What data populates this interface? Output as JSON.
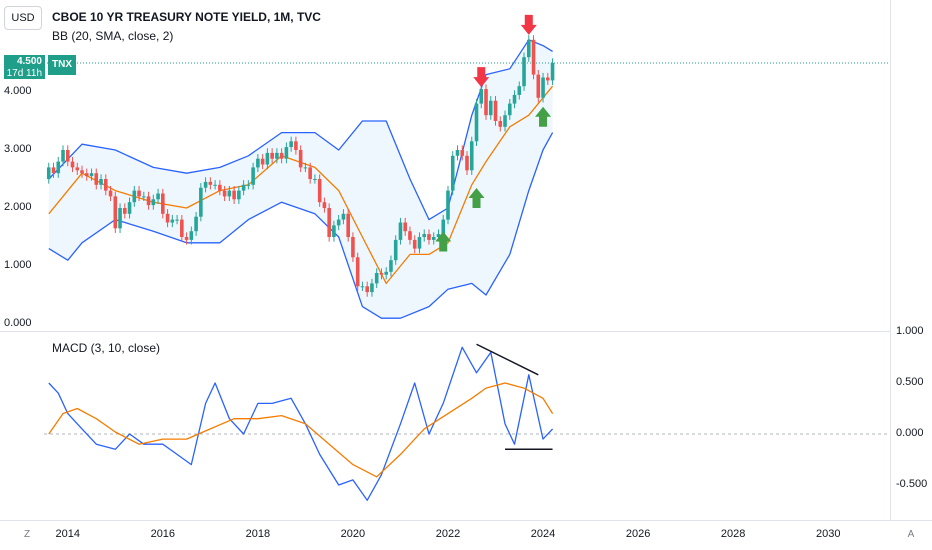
{
  "header": {
    "currency": "USD",
    "title": "CBOE 10 YR TREASURY NOTE YIELD, 1M, TVC",
    "indicator_bb": "BB (20, SMA, close, 2)",
    "indicator_macd": "MACD (3, 10, close)",
    "price_label": "4.500",
    "countdown_label": "17d 11h",
    "symbol_label": "TNX"
  },
  "corner": {
    "left": "Z",
    "right": "A"
  },
  "colors": {
    "up": "#26a69a",
    "down": "#ef5350",
    "bb_band": "#2962ff",
    "bb_basis": "#f57c00",
    "bb_fill": "#e3f2fd",
    "macd": "#2962ff",
    "signal": "#f57c00",
    "arrow_up": "#43a047",
    "arrow_down": "#f23645",
    "price_line": "#1f9e8a"
  },
  "chart_data": [
    {
      "type": "candlestick",
      "title": "CBOE 10 YR TREASURY NOTE YIELD, 1M, TVC",
      "ylim": [
        0,
        5
      ],
      "yticks": [
        "0.000",
        "1.000",
        "2.000",
        "3.000",
        "4.000"
      ],
      "xticks": [
        "2014",
        "2016",
        "2018",
        "2020",
        "2022",
        "2024",
        "2026",
        "2028",
        "2030"
      ],
      "xlim": [
        2013.5,
        2031.3
      ],
      "last_price": 4.5,
      "bb": {
        "upper": [
          [
            2013.6,
            2.5
          ],
          [
            2014.3,
            3.1
          ],
          [
            2015.0,
            3.0
          ],
          [
            2015.8,
            2.7
          ],
          [
            2016.5,
            2.6
          ],
          [
            2017.2,
            2.7
          ],
          [
            2017.8,
            2.9
          ],
          [
            2018.5,
            3.3
          ],
          [
            2019.2,
            3.3
          ],
          [
            2019.7,
            3.0
          ],
          [
            2020.2,
            3.5
          ],
          [
            2020.7,
            3.5
          ],
          [
            2021.2,
            2.5
          ],
          [
            2021.6,
            1.8
          ],
          [
            2022.0,
            2.0
          ],
          [
            2022.5,
            3.6
          ],
          [
            2022.8,
            4.3
          ],
          [
            2023.3,
            4.4
          ],
          [
            2023.7,
            4.9
          ],
          [
            2024.0,
            4.8
          ],
          [
            2024.2,
            4.7
          ]
        ],
        "basis": [
          [
            2013.6,
            1.9
          ],
          [
            2014.3,
            2.6
          ],
          [
            2015.0,
            2.3
          ],
          [
            2015.8,
            2.1
          ],
          [
            2016.5,
            2.0
          ],
          [
            2017.2,
            2.3
          ],
          [
            2017.8,
            2.4
          ],
          [
            2018.5,
            2.9
          ],
          [
            2019.2,
            2.7
          ],
          [
            2019.7,
            2.3
          ],
          [
            2020.2,
            1.5
          ],
          [
            2020.7,
            0.7
          ],
          [
            2021.2,
            1.2
          ],
          [
            2021.6,
            1.2
          ],
          [
            2022.0,
            1.4
          ],
          [
            2022.5,
            2.4
          ],
          [
            2022.8,
            2.8
          ],
          [
            2023.3,
            3.4
          ],
          [
            2023.7,
            3.6
          ],
          [
            2024.0,
            3.9
          ],
          [
            2024.2,
            4.1
          ]
        ],
        "lower": [
          [
            2013.6,
            1.3
          ],
          [
            2014.0,
            1.1
          ],
          [
            2014.3,
            1.4
          ],
          [
            2015.0,
            1.8
          ],
          [
            2015.8,
            1.6
          ],
          [
            2016.5,
            1.4
          ],
          [
            2017.2,
            1.4
          ],
          [
            2017.8,
            1.8
          ],
          [
            2018.5,
            2.1
          ],
          [
            2019.2,
            1.9
          ],
          [
            2019.7,
            1.5
          ],
          [
            2020.2,
            0.3
          ],
          [
            2020.6,
            0.1
          ],
          [
            2021.0,
            0.1
          ],
          [
            2021.6,
            0.3
          ],
          [
            2022.0,
            0.6
          ],
          [
            2022.5,
            0.7
          ],
          [
            2022.8,
            0.5
          ],
          [
            2023.3,
            1.2
          ],
          [
            2023.7,
            2.3
          ],
          [
            2024.0,
            3.0
          ],
          [
            2024.2,
            3.3
          ]
        ]
      },
      "candles": [
        [
          2013.6,
          2.5,
          2.7
        ],
        [
          2013.7,
          2.7,
          2.6
        ],
        [
          2013.8,
          2.6,
          2.8
        ],
        [
          2013.9,
          2.8,
          3.0
        ],
        [
          2014.0,
          3.0,
          2.8
        ],
        [
          2014.1,
          2.8,
          2.7
        ],
        [
          2014.2,
          2.7,
          2.65
        ],
        [
          2014.3,
          2.65,
          2.6
        ],
        [
          2014.4,
          2.6,
          2.55
        ],
        [
          2014.5,
          2.55,
          2.6
        ],
        [
          2014.6,
          2.6,
          2.4
        ],
        [
          2014.7,
          2.4,
          2.5
        ],
        [
          2014.8,
          2.5,
          2.3
        ],
        [
          2014.9,
          2.3,
          2.2
        ],
        [
          2015.0,
          2.2,
          1.65
        ],
        [
          2015.1,
          1.65,
          2.0
        ],
        [
          2015.2,
          2.0,
          1.9
        ],
        [
          2015.3,
          1.9,
          2.1
        ],
        [
          2015.4,
          2.1,
          2.3
        ],
        [
          2015.5,
          2.3,
          2.2
        ],
        [
          2015.6,
          2.2,
          2.2
        ],
        [
          2015.7,
          2.2,
          2.05
        ],
        [
          2015.8,
          2.05,
          2.15
        ],
        [
          2015.9,
          2.15,
          2.25
        ],
        [
          2016.0,
          2.25,
          1.9
        ],
        [
          2016.1,
          1.9,
          1.75
        ],
        [
          2016.2,
          1.75,
          1.8
        ],
        [
          2016.3,
          1.8,
          1.8
        ],
        [
          2016.4,
          1.8,
          1.5
        ],
        [
          2016.5,
          1.5,
          1.45
        ],
        [
          2016.6,
          1.45,
          1.6
        ],
        [
          2016.7,
          1.6,
          1.85
        ],
        [
          2016.8,
          1.85,
          2.35
        ],
        [
          2016.9,
          2.35,
          2.45
        ],
        [
          2017.0,
          2.45,
          2.4
        ],
        [
          2017.1,
          2.4,
          2.4
        ],
        [
          2017.2,
          2.4,
          2.3
        ],
        [
          2017.3,
          2.3,
          2.2
        ],
        [
          2017.4,
          2.2,
          2.3
        ],
        [
          2017.5,
          2.3,
          2.15
        ],
        [
          2017.6,
          2.15,
          2.3
        ],
        [
          2017.7,
          2.3,
          2.4
        ],
        [
          2017.8,
          2.4,
          2.4
        ],
        [
          2017.9,
          2.4,
          2.7
        ],
        [
          2018.0,
          2.7,
          2.85
        ],
        [
          2018.1,
          2.85,
          2.75
        ],
        [
          2018.2,
          2.75,
          2.95
        ],
        [
          2018.3,
          2.95,
          2.85
        ],
        [
          2018.4,
          2.85,
          2.95
        ],
        [
          2018.5,
          2.95,
          2.85
        ],
        [
          2018.6,
          2.85,
          3.05
        ],
        [
          2018.7,
          3.05,
          3.15
        ],
        [
          2018.8,
          3.15,
          3.0
        ],
        [
          2018.9,
          3.0,
          2.7
        ],
        [
          2019.0,
          2.7,
          2.7
        ],
        [
          2019.1,
          2.7,
          2.5
        ],
        [
          2019.2,
          2.5,
          2.5
        ],
        [
          2019.3,
          2.5,
          2.1
        ],
        [
          2019.4,
          2.1,
          2.0
        ],
        [
          2019.5,
          2.0,
          1.5
        ],
        [
          2019.6,
          1.5,
          1.7
        ],
        [
          2019.7,
          1.7,
          1.8
        ],
        [
          2019.8,
          1.8,
          1.9
        ],
        [
          2019.9,
          1.9,
          1.5
        ],
        [
          2020.0,
          1.5,
          1.15
        ],
        [
          2020.1,
          1.15,
          0.65
        ],
        [
          2020.2,
          0.65,
          0.65
        ],
        [
          2020.3,
          0.65,
          0.55
        ],
        [
          2020.4,
          0.55,
          0.7
        ],
        [
          2020.5,
          0.7,
          0.88
        ],
        [
          2020.6,
          0.88,
          0.85
        ],
        [
          2020.7,
          0.85,
          0.9
        ],
        [
          2020.8,
          0.9,
          1.1
        ],
        [
          2020.9,
          1.1,
          1.45
        ],
        [
          2021.0,
          1.45,
          1.75
        ],
        [
          2021.1,
          1.75,
          1.6
        ],
        [
          2021.2,
          1.6,
          1.45
        ],
        [
          2021.3,
          1.45,
          1.3
        ],
        [
          2021.4,
          1.3,
          1.5
        ],
        [
          2021.5,
          1.5,
          1.55
        ],
        [
          2021.6,
          1.55,
          1.45
        ],
        [
          2021.7,
          1.45,
          1.5
        ],
        [
          2021.8,
          1.5,
          1.55
        ],
        [
          2021.9,
          1.55,
          1.8
        ],
        [
          2022.0,
          1.8,
          2.3
        ],
        [
          2022.1,
          2.3,
          2.9
        ],
        [
          2022.2,
          2.9,
          3.0
        ],
        [
          2022.3,
          3.0,
          2.9
        ],
        [
          2022.4,
          2.9,
          2.65
        ],
        [
          2022.5,
          2.65,
          3.15
        ],
        [
          2022.6,
          3.15,
          3.8
        ],
        [
          2022.7,
          3.8,
          4.05
        ],
        [
          2022.8,
          4.05,
          3.6
        ],
        [
          2022.9,
          3.6,
          3.85
        ],
        [
          2023.0,
          3.85,
          3.5
        ],
        [
          2023.1,
          3.5,
          3.4
        ],
        [
          2023.2,
          3.4,
          3.6
        ],
        [
          2023.3,
          3.6,
          3.8
        ],
        [
          2023.4,
          3.8,
          3.95
        ],
        [
          2023.5,
          3.95,
          4.1
        ],
        [
          2023.6,
          4.1,
          4.6
        ],
        [
          2023.7,
          4.6,
          4.9
        ],
        [
          2023.8,
          4.9,
          4.3
        ],
        [
          2023.9,
          4.3,
          3.9
        ],
        [
          2024.0,
          3.9,
          4.25
        ],
        [
          2024.1,
          4.25,
          4.2
        ],
        [
          2024.2,
          4.2,
          4.5
        ]
      ],
      "signals": [
        {
          "dir": "down",
          "x": 2022.7,
          "y": 4.05
        },
        {
          "dir": "down",
          "x": 2023.7,
          "y": 4.95
        },
        {
          "dir": "up",
          "x": 2021.9,
          "y": 1.25
        },
        {
          "dir": "up",
          "x": 2022.6,
          "y": 2.0
        },
        {
          "dir": "up",
          "x": 2024.0,
          "y": 3.4
        }
      ]
    },
    {
      "type": "line",
      "title": "MACD (3, 10, close)",
      "ylim": [
        -0.8,
        1.1
      ],
      "yticks": [
        "1.000",
        "0.500",
        "0.000",
        "-0.500"
      ],
      "series": [
        {
          "values": [
            [
              2013.6,
              0.5
            ],
            [
              2013.8,
              0.4
            ],
            [
              2014.0,
              0.2
            ],
            [
              2014.3,
              0.05
            ],
            [
              2014.6,
              -0.1
            ],
            [
              2015.0,
              -0.15
            ],
            [
              2015.3,
              0.0
            ],
            [
              2015.6,
              -0.1
            ],
            [
              2016.0,
              -0.1
            ],
            [
              2016.3,
              -0.2
            ],
            [
              2016.6,
              -0.3
            ],
            [
              2016.9,
              0.3
            ],
            [
              2017.1,
              0.5
            ],
            [
              2017.4,
              0.15
            ],
            [
              2017.7,
              0.0
            ],
            [
              2018.0,
              0.3
            ],
            [
              2018.3,
              0.3
            ],
            [
              2018.7,
              0.35
            ],
            [
              2019.0,
              0.1
            ],
            [
              2019.3,
              -0.2
            ],
            [
              2019.7,
              -0.5
            ],
            [
              2020.0,
              -0.45
            ],
            [
              2020.3,
              -0.65
            ],
            [
              2020.6,
              -0.4
            ],
            [
              2021.0,
              0.1
            ],
            [
              2021.3,
              0.5
            ],
            [
              2021.6,
              0.0
            ],
            [
              2021.9,
              0.3
            ],
            [
              2022.3,
              0.85
            ],
            [
              2022.6,
              0.6
            ],
            [
              2022.9,
              0.8
            ],
            [
              2023.2,
              0.1
            ],
            [
              2023.4,
              -0.1
            ],
            [
              2023.7,
              0.58
            ],
            [
              2024.0,
              -0.05
            ],
            [
              2024.2,
              0.05
            ]
          ]
        },
        {
          "values": [
            [
              2013.6,
              0.0
            ],
            [
              2013.9,
              0.2
            ],
            [
              2014.2,
              0.25
            ],
            [
              2014.6,
              0.15
            ],
            [
              2015.0,
              0.02
            ],
            [
              2015.5,
              -0.1
            ],
            [
              2016.0,
              -0.05
            ],
            [
              2016.5,
              -0.05
            ],
            [
              2017.0,
              0.05
            ],
            [
              2017.5,
              0.15
            ],
            [
              2018.0,
              0.15
            ],
            [
              2018.5,
              0.18
            ],
            [
              2019.0,
              0.1
            ],
            [
              2019.5,
              -0.1
            ],
            [
              2020.0,
              -0.3
            ],
            [
              2020.5,
              -0.42
            ],
            [
              2021.0,
              -0.2
            ],
            [
              2021.5,
              0.05
            ],
            [
              2022.0,
              0.2
            ],
            [
              2022.5,
              0.35
            ],
            [
              2022.8,
              0.45
            ],
            [
              2023.2,
              0.5
            ],
            [
              2023.6,
              0.45
            ],
            [
              2024.0,
              0.35
            ],
            [
              2024.2,
              0.2
            ]
          ]
        }
      ],
      "trendlines": [
        {
          "from": [
            2022.6,
            0.88
          ],
          "to": [
            2023.9,
            0.58
          ]
        },
        {
          "from": [
            2023.2,
            -0.15
          ],
          "to": [
            2024.2,
            -0.15
          ]
        }
      ]
    }
  ]
}
